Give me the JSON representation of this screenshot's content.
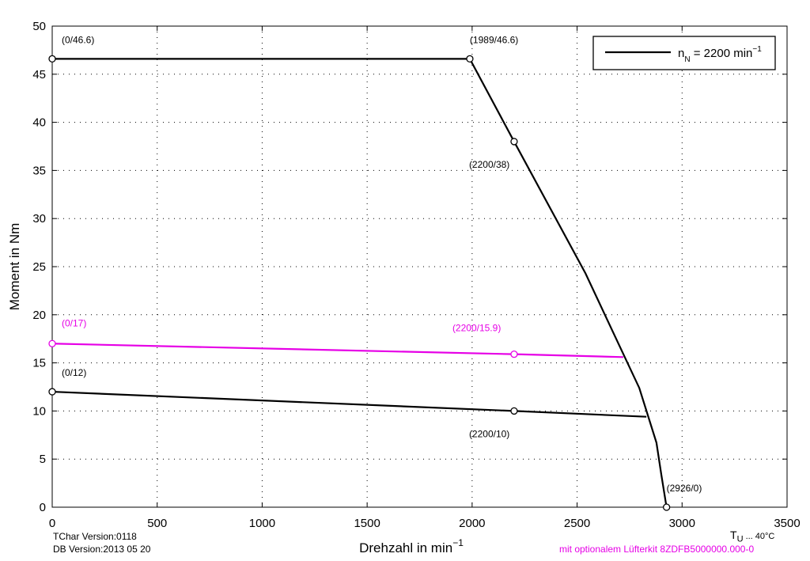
{
  "chart_data": {
    "type": "line",
    "xlabel": "Drehzahl in min",
    "xlabel_sup": "−1",
    "ylabel": "Moment in Nm",
    "xlim": [
      0,
      3500
    ],
    "ylim": [
      0,
      50
    ],
    "xticks": [
      0,
      500,
      1000,
      1500,
      2000,
      2500,
      3000,
      3500
    ],
    "yticks": [
      0,
      5,
      10,
      15,
      20,
      25,
      30,
      35,
      40,
      45,
      50
    ],
    "grid": true,
    "legend": {
      "position": "top-right",
      "text": "n",
      "sub": "N",
      "rest": " = 2200 min",
      "sup": "−1"
    },
    "series": [
      {
        "name": "n_N = 2200 min-1",
        "color": "#000000",
        "x": [
          0,
          1989,
          2200,
          2540,
          2671,
          2796,
          2878,
          2901,
          2926
        ],
        "y": [
          46.6,
          46.6,
          38,
          24.3,
          18.2,
          12.4,
          6.7,
          3.4,
          0
        ]
      },
      {
        "color": "#000000",
        "x": [
          0,
          2200,
          2830
        ],
        "y": [
          12,
          10,
          9.4
        ]
      },
      {
        "color": "#e600e6",
        "x": [
          0,
          2200,
          2720
        ],
        "y": [
          17,
          15.9,
          15.6
        ]
      }
    ],
    "markers": [
      {
        "x": 0,
        "y": 46.6,
        "label": "(0/46.6)",
        "color": "#000000",
        "dx": 12,
        "dy": -20
      },
      {
        "x": 1989,
        "y": 46.6,
        "label": "(1989/46.6)",
        "color": "#000000",
        "dx": 0,
        "dy": -20
      },
      {
        "x": 2200,
        "y": 38,
        "label": "(2200/38)",
        "color": "#000000",
        "dx": -57,
        "dy": 33
      },
      {
        "x": 0,
        "y": 17,
        "label": "(0/17)",
        "color": "#e600e6",
        "dx": 12,
        "dy": -22
      },
      {
        "x": 2200,
        "y": 15.9,
        "label": "(2200/15.9)",
        "color": "#e600e6",
        "dx": -78,
        "dy": -29
      },
      {
        "x": 0,
        "y": 12,
        "label": "(0/12)",
        "color": "#000000",
        "dx": 12,
        "dy": -20
      },
      {
        "x": 2200,
        "y": 10,
        "label": "(2200/10)",
        "color": "#000000",
        "dx": -57,
        "dy": 33
      },
      {
        "x": 2926,
        "y": 0,
        "label": "(2926/0)",
        "color": "#000000",
        "dx": 0,
        "dy": -20
      }
    ]
  },
  "footer": {
    "tchar": "TChar Version:0118",
    "db": "DB Version:2013 05 20",
    "tu_T": "T",
    "tu_sub": "U",
    "tu_rest": " ... 40°C",
    "lufter": "mit optionalem Lüfterkit 8ZDFB5000000.000-0",
    "lufter_color": "#e600e6"
  }
}
